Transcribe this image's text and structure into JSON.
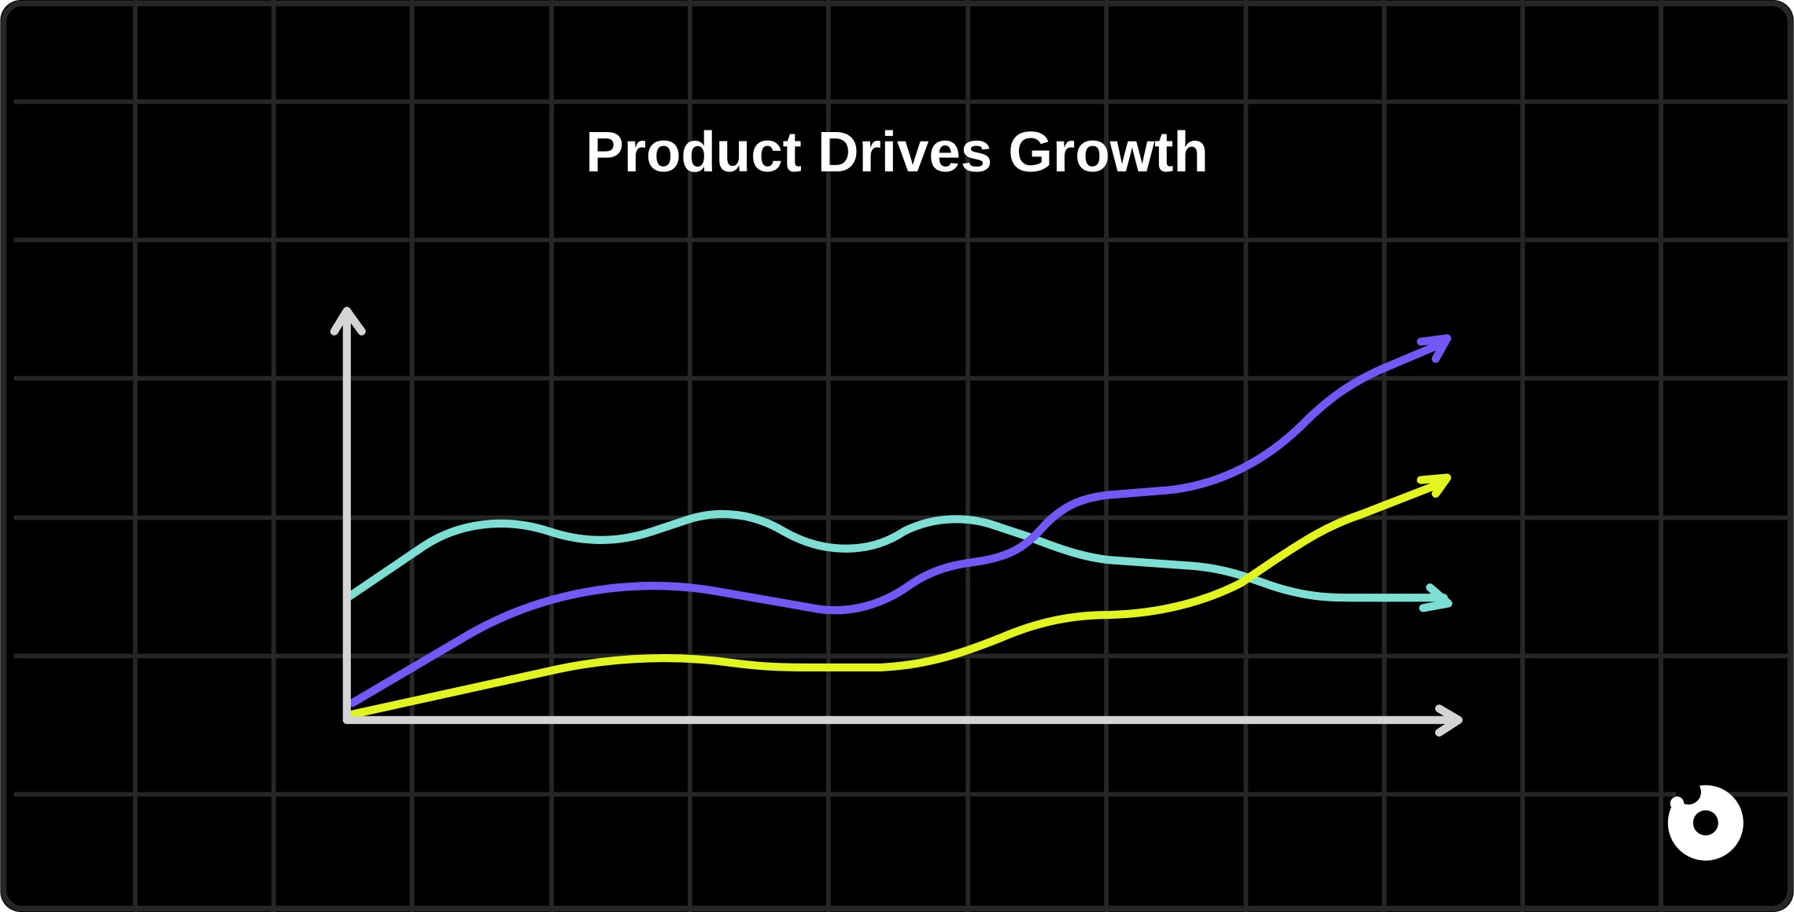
{
  "header": {
    "title": "Product Drives Growth"
  }
}
